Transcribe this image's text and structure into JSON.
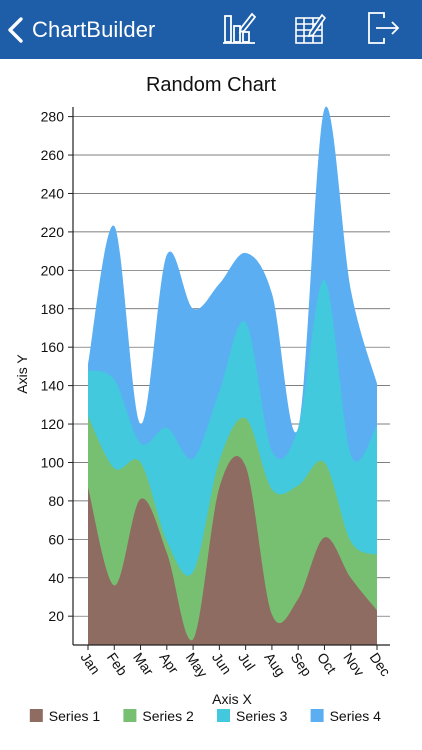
{
  "nav": {
    "title": "ChartBuilder",
    "buttons": [
      {
        "name": "chart-edit-button",
        "icon": "bar-chart-pencil-icon"
      },
      {
        "name": "table-edit-button",
        "icon": "table-pencil-icon"
      },
      {
        "name": "export-button",
        "icon": "exit-icon"
      }
    ]
  },
  "colors": {
    "navbar": "#1e5ea8",
    "series": [
      "#8f6c62",
      "#77c072",
      "#43c9de",
      "#5aaef1"
    ]
  },
  "chart_data": {
    "type": "area",
    "stacked": true,
    "title": "Random Chart",
    "xlabel": "Axis X",
    "ylabel": "Axis Y",
    "categories": [
      "Jan",
      "Feb",
      "Mar",
      "Apr",
      "May",
      "Jun",
      "Jul",
      "Aug",
      "Sep",
      "Oct",
      "Nov",
      "Dec"
    ],
    "ylim": [
      5,
      285
    ],
    "yticks": [
      20,
      40,
      60,
      80,
      100,
      120,
      140,
      160,
      180,
      200,
      220,
      240,
      260,
      280
    ],
    "grid": true,
    "legend_position": "bottom",
    "series": [
      {
        "name": "Series 1",
        "values": [
          87,
          36,
          81,
          53,
          8,
          87,
          98,
          21,
          29,
          61,
          40,
          23
        ]
      },
      {
        "name": "Series 2",
        "values": [
          37,
          61,
          19,
          6,
          35,
          14,
          25,
          65,
          59,
          39,
          19,
          29
        ]
      },
      {
        "name": "Series 3",
        "values": [
          24,
          46,
          10,
          59,
          59,
          36,
          50,
          20,
          30,
          95,
          45,
          67
        ]
      },
      {
        "name": "Series 4",
        "values": [
          3,
          80,
          10,
          90,
          78,
          56,
          36,
          82,
          0,
          89,
          86,
          22
        ]
      }
    ]
  }
}
